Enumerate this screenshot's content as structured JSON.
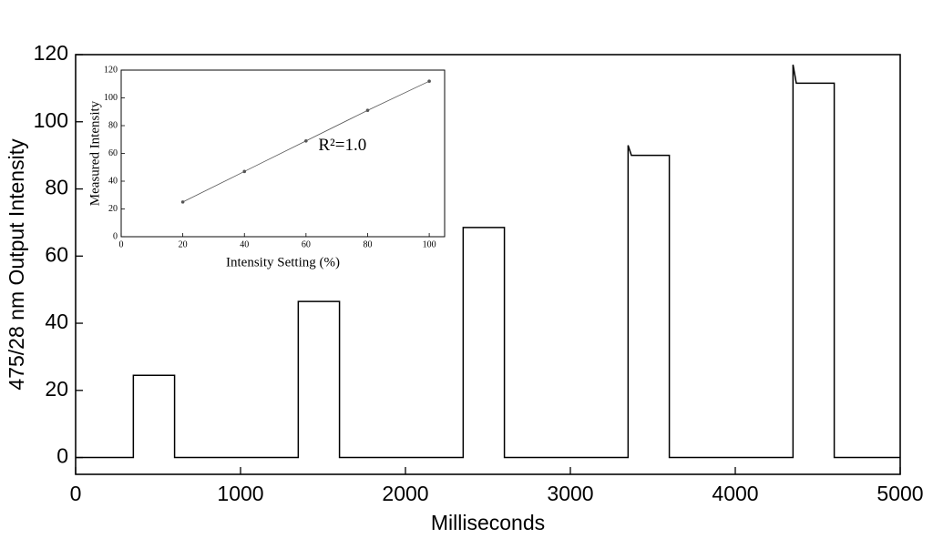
{
  "chart_data": [
    {
      "type": "line",
      "xlabel": "Milliseconds",
      "ylabel": "475/28 nm Output Intensity",
      "x": [
        0,
        350,
        350,
        600,
        600,
        1350,
        1350,
        1600,
        1600,
        2350,
        2350,
        2600,
        2600,
        3350,
        3350,
        3370,
        3600,
        3600,
        4350,
        4350,
        4370,
        4600,
        4600,
        5000
      ],
      "values": [
        0,
        0,
        24.5,
        24.5,
        0,
        0,
        46.5,
        46.5,
        0,
        0,
        68.5,
        68.5,
        0,
        0,
        93,
        90,
        90,
        0,
        0,
        117,
        111.5,
        111.5,
        0,
        0
      ],
      "color": "#000000",
      "xlim": [
        0,
        5000
      ],
      "ylim": [
        -5,
        120
      ],
      "xticks": [
        0,
        1000,
        2000,
        3000,
        4000,
        5000
      ],
      "yticks": [
        0,
        20,
        40,
        60,
        80,
        100,
        120
      ]
    },
    {
      "type": "scatter",
      "xlabel": "Intensity Setting (%)",
      "ylabel": "Measured Intensity",
      "annotation": "R²=1.0",
      "x": [
        20,
        40,
        60,
        80,
        100
      ],
      "values": [
        25,
        47,
        69,
        91,
        112
      ],
      "color": "#555555",
      "connect": true,
      "xlim": [
        0,
        105
      ],
      "ylim": [
        0,
        120
      ],
      "xticks": [
        0,
        20,
        40,
        60,
        80,
        100
      ],
      "yticks": [
        0,
        20,
        40,
        60,
        80,
        100,
        120
      ]
    }
  ]
}
